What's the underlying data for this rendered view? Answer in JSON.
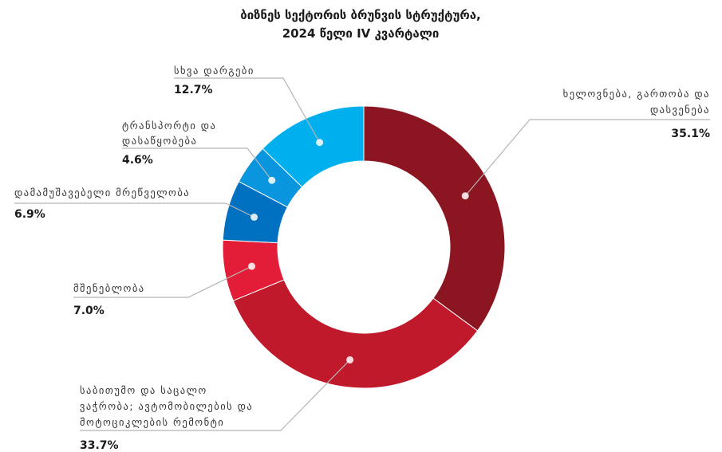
{
  "chart_data": {
    "type": "pie",
    "donut": true,
    "title": [
      "ბიზნეს სექტორის ბრუნვის სტრუქტურა,",
      "2024 წელი IV კვარტალი"
    ],
    "slices": [
      {
        "label": [
          "ხელოვნება, გართობა და",
          "დასვენება"
        ],
        "value": 35.1,
        "value_label": "35.1%",
        "color": "#8B1520"
      },
      {
        "label": [
          "საბითუმო და საცალო",
          "ვაჭრობა; ავტომობილების და",
          "მოტოციკლების რემონტი"
        ],
        "value": 33.7,
        "value_label": "33.7%",
        "color": "#C0192C"
      },
      {
        "label": [
          "მშენებლობა"
        ],
        "value": 7.0,
        "value_label": "7.0%",
        "color": "#E31D37"
      },
      {
        "label": [
          "დამამუშავებელი მრეწველობა"
        ],
        "value": 6.9,
        "value_label": "6.9%",
        "color": "#0070C0"
      },
      {
        "label": [
          "ტრანსპორტი და",
          "დასაწყობება"
        ],
        "value": 4.6,
        "value_label": "4.6%",
        "color": "#0A96DE"
      },
      {
        "label": [
          "სხვა დარგები"
        ],
        "value": 12.7,
        "value_label": "12.7%",
        "color": "#00B0EE"
      }
    ]
  }
}
